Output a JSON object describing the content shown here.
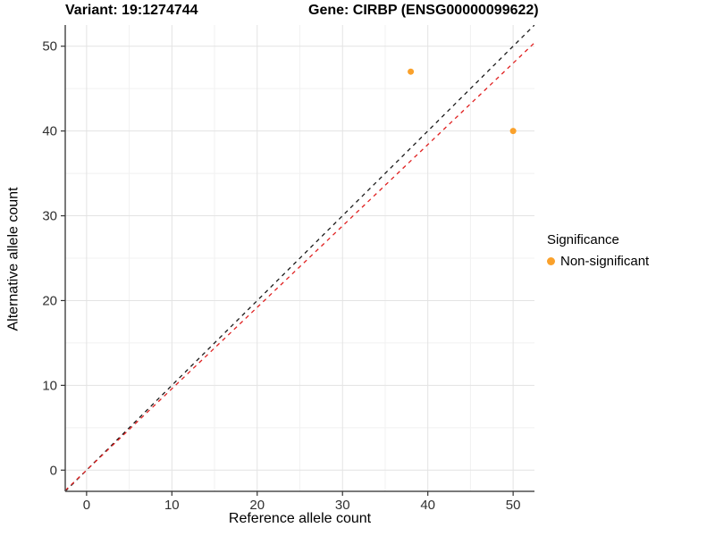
{
  "chart_data": {
    "type": "scatter",
    "title_left": "Variant: 19:1274744",
    "title_right": "Gene: CIRBP (ENSG00000099622)",
    "xlabel": "Reference allele count",
    "ylabel": "Alternative allele count",
    "xlim": [
      -2.5,
      52.5
    ],
    "ylim": [
      -2.5,
      52.5
    ],
    "x_ticks": [
      0,
      10,
      20,
      30,
      40,
      50
    ],
    "y_ticks": [
      0,
      10,
      20,
      30,
      40,
      50
    ],
    "x_minor_ticks": [
      5,
      15,
      25,
      35,
      45
    ],
    "y_minor_ticks": [
      5,
      15,
      25,
      35,
      45
    ],
    "grid": true,
    "points": [
      {
        "x": 38,
        "y": 47,
        "series": "Non-significant"
      },
      {
        "x": 50,
        "y": 40,
        "series": "Non-significant"
      }
    ],
    "lines": [
      {
        "name": "identity-line",
        "slope": 1,
        "intercept": 0,
        "color": "#1a1a1a",
        "dashed": true
      },
      {
        "name": "expected-ratio-line",
        "slope": 0.96,
        "intercept": 0,
        "color": "#e02020",
        "dashed": true
      }
    ],
    "legend": {
      "position": "right",
      "title": "Significance",
      "items": [
        {
          "label": "Non-significant",
          "color": "#faa12b"
        }
      ]
    },
    "style": {
      "point_color": "#faa12b",
      "point_radius": 3.5,
      "grid_major_color": "#e3e3e3",
      "grid_minor_color": "#f1f1f1",
      "axis_line_color": "#4d4d4d",
      "tick_color": "#333333",
      "tick_label_color": "#303030",
      "background": "#ffffff"
    }
  }
}
